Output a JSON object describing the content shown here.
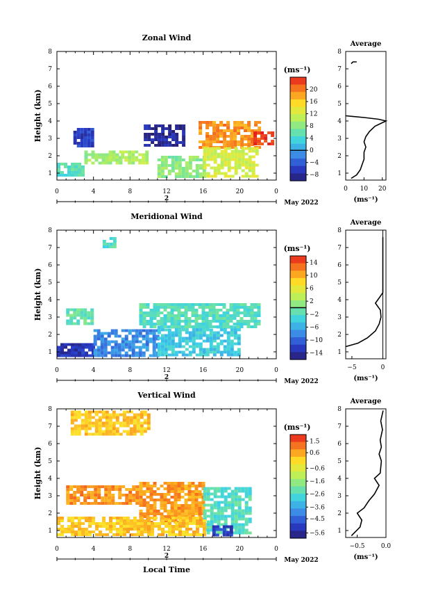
{
  "panels": [
    {
      "title": "Zonal Wind",
      "ylabel": "Height (km)",
      "ylim": [
        0.6,
        8
      ],
      "yticks": [
        "1",
        "2",
        "3",
        "4",
        "5",
        "6",
        "7",
        "8"
      ],
      "xlim": [
        0,
        24
      ],
      "xticks": [
        "0",
        "4",
        "8",
        "12",
        "16",
        "20",
        "0"
      ],
      "date_label": "2",
      "month_label": "May 2022",
      "unit_label": "(ms⁻¹)",
      "colorbar": {
        "min": -10,
        "max": 24,
        "ticks": [
          {
            "v": 20,
            "label": "20"
          },
          {
            "v": 16,
            "label": "16"
          },
          {
            "v": 12,
            "label": "12"
          },
          {
            "v": 8,
            "label": "8"
          },
          {
            "v": 4,
            "label": "4"
          },
          {
            "v": 0,
            "label": "0"
          },
          {
            "v": -4,
            "label": "−4"
          },
          {
            "v": -8,
            "label": "−8"
          }
        ],
        "zero_line": 0
      },
      "avg": {
        "title": "Average",
        "xlim": [
          0,
          22
        ],
        "xticks": [
          {
            "v": 0,
            "label": "0"
          },
          {
            "v": 10,
            "label": "10"
          },
          {
            "v": 20,
            "label": "20"
          }
        ],
        "xlabel": "(ms⁻¹)",
        "zero_line": false,
        "profile": [
          [
            3,
            0.7
          ],
          [
            6,
            0.9
          ],
          [
            8,
            1.2
          ],
          [
            9,
            1.5
          ],
          [
            10,
            1.8
          ],
          [
            10,
            2.2
          ],
          [
            11,
            2.5
          ],
          [
            10,
            2.8
          ],
          [
            11,
            3.1
          ],
          [
            13,
            3.4
          ],
          [
            16,
            3.7
          ],
          [
            20,
            3.9
          ],
          [
            22,
            4.0
          ],
          [
            18,
            4.1
          ],
          [
            10,
            4.2
          ],
          [
            0,
            4.3
          ]
        ],
        "profile2": [
          [
            3,
            7.3
          ],
          [
            4,
            7.4
          ],
          [
            6,
            7.4
          ]
        ]
      }
    },
    {
      "title": "Meridional Wind",
      "ylabel": "Height (km)",
      "ylim": [
        0.6,
        8
      ],
      "yticks": [
        "1",
        "2",
        "3",
        "4",
        "5",
        "6",
        "7",
        "8"
      ],
      "xlim": [
        0,
        24
      ],
      "xticks": [
        "0",
        "4",
        "8",
        "12",
        "16",
        "20",
        "0"
      ],
      "date_label": "2",
      "month_label": "May 2022",
      "unit_label": "(ms⁻¹)",
      "colorbar": {
        "min": -16,
        "max": 16,
        "ticks": [
          {
            "v": 14,
            "label": "14"
          },
          {
            "v": 10,
            "label": "10"
          },
          {
            "v": 6,
            "label": "6"
          },
          {
            "v": 2,
            "label": "2"
          },
          {
            "v": -2,
            "label": "−2"
          },
          {
            "v": -6,
            "label": "−6"
          },
          {
            "v": -10,
            "label": "−10"
          },
          {
            "v": -14,
            "label": "−14"
          }
        ],
        "zero_line": 0
      },
      "avg": {
        "title": "Average",
        "xlim": [
          -6,
          0.5
        ],
        "xticks": [
          {
            "v": -5,
            "label": "−5"
          },
          {
            "v": 0,
            "label": "0"
          }
        ],
        "xlabel": "(ms⁻¹)",
        "zero_line": true,
        "profile": [
          [
            -6,
            1.3
          ],
          [
            -4,
            1.5
          ],
          [
            -2.5,
            1.8
          ],
          [
            -1.2,
            2.2
          ],
          [
            -0.6,
            2.6
          ],
          [
            -0.3,
            3.0
          ],
          [
            -0.4,
            3.4
          ],
          [
            -1.2,
            3.8
          ],
          [
            -0.6,
            4.1
          ],
          [
            0,
            4.4
          ],
          [
            0,
            5.0
          ],
          [
            0,
            7.6
          ]
        ]
      }
    },
    {
      "title": "Vertical Wind",
      "ylabel": "Height (km)",
      "ylim": [
        0.6,
        8
      ],
      "yticks": [
        "1",
        "2",
        "3",
        "4",
        "5",
        "6",
        "7",
        "8"
      ],
      "xlim": [
        0,
        24
      ],
      "xticks": [
        "0",
        "4",
        "8",
        "12",
        "16",
        "20",
        "0"
      ],
      "date_label": "2",
      "month_label": "May 2022",
      "unit_label": "(ms⁻¹)",
      "xlabel": "Local Time",
      "colorbar": {
        "min": -6,
        "max": 2,
        "ticks": [
          {
            "v": 1.5,
            "label": "1.5"
          },
          {
            "v": 0.6,
            "label": "0.6"
          },
          {
            "v": -0.6,
            "label": "−0.6"
          },
          {
            "v": -1.6,
            "label": "−1.6"
          },
          {
            "v": -2.6,
            "label": "−2.6"
          },
          {
            "v": -3.6,
            "label": "−3.6"
          },
          {
            "v": -4.5,
            "label": "−4.5"
          },
          {
            "v": -5.6,
            "label": "−5.6"
          }
        ],
        "zero_line": null
      },
      "avg": {
        "title": "Average",
        "xlim": [
          -0.7,
          0
        ],
        "xticks": [
          {
            "v": -0.5,
            "label": "−0.5"
          },
          {
            "v": 0,
            "label": "0.0"
          }
        ],
        "xlabel": "(ms⁻¹)",
        "zero_line": false,
        "profile": [
          [
            -0.6,
            0.7
          ],
          [
            -0.45,
            1.2
          ],
          [
            -0.42,
            1.6
          ],
          [
            -0.5,
            2.0
          ],
          [
            -0.38,
            2.3
          ],
          [
            -0.3,
            2.7
          ],
          [
            -0.2,
            3.1
          ],
          [
            -0.12,
            3.6
          ],
          [
            -0.2,
            4.0
          ],
          [
            -0.1,
            4.3
          ],
          [
            -0.08,
            5.0
          ],
          [
            -0.12,
            5.4
          ],
          [
            -0.08,
            5.8
          ],
          [
            -0.1,
            6.2
          ],
          [
            -0.06,
            6.8
          ],
          [
            -0.09,
            7.3
          ],
          [
            -0.05,
            7.9
          ]
        ]
      }
    }
  ],
  "chart_data": [
    {
      "type": "heatmap",
      "title": "Zonal Wind",
      "x": "Local Time (hours, 2 May 2022)",
      "ylabel": "Height (km)",
      "xlim": [
        0,
        24
      ],
      "ylim": [
        0.6,
        8
      ],
      "colorbar_range": [
        -10,
        24
      ],
      "regions": [
        {
          "x": [
            0,
            3
          ],
          "y": [
            0.8,
            1.6
          ],
          "value": 5
        },
        {
          "x": [
            1.8,
            3.8
          ],
          "y": [
            2.6,
            3.6
          ],
          "value": -6
        },
        {
          "x": [
            3,
            7
          ],
          "y": [
            1.5,
            2.3
          ],
          "value": 9
        },
        {
          "x": [
            7,
            10
          ],
          "y": [
            1.5,
            2.3
          ],
          "value": 10
        },
        {
          "x": [
            9.5,
            14
          ],
          "y": [
            2.6,
            3.8
          ],
          "value": -8
        },
        {
          "x": [
            11,
            16
          ],
          "y": [
            0.8,
            2.0
          ],
          "value": 8
        },
        {
          "x": [
            15.5,
            22
          ],
          "y": [
            2.5,
            4.0
          ],
          "value": 19
        },
        {
          "x": [
            16,
            22
          ],
          "y": [
            0.8,
            2.5
          ],
          "value": 12
        },
        {
          "x": [
            21.5,
            23.5
          ],
          "y": [
            2.6,
            3.4
          ],
          "value": 23
        }
      ]
    },
    {
      "type": "heatmap",
      "title": "Meridional Wind",
      "x": "Local Time (hours, 2 May 2022)",
      "ylabel": "Height (km)",
      "xlim": [
        0,
        24
      ],
      "ylim": [
        0.6,
        8
      ],
      "colorbar_range": [
        -16,
        16
      ],
      "regions": [
        {
          "x": [
            0,
            4
          ],
          "y": [
            0.8,
            1.5
          ],
          "value": -13
        },
        {
          "x": [
            4,
            11
          ],
          "y": [
            0.8,
            2.3
          ],
          "value": -8
        },
        {
          "x": [
            11,
            20
          ],
          "y": [
            0.8,
            2.5
          ],
          "value": -4
        },
        {
          "x": [
            1,
            4
          ],
          "y": [
            2.6,
            3.5
          ],
          "value": -1
        },
        {
          "x": [
            9,
            22
          ],
          "y": [
            2.5,
            3.8
          ],
          "value": -2
        },
        {
          "x": [
            5,
            6.5
          ],
          "y": [
            7.0,
            7.6
          ],
          "value": -2
        }
      ]
    },
    {
      "type": "heatmap",
      "title": "Vertical Wind",
      "x": "Local Time (hours, 2 May 2022)",
      "xlabel": "Local Time",
      "ylabel": "Height (km)",
      "xlim": [
        0,
        24
      ],
      "ylim": [
        0.6,
        8
      ],
      "colorbar_range": [
        -6,
        2
      ],
      "regions": [
        {
          "x": [
            1,
            9
          ],
          "y": [
            2.6,
            3.6
          ],
          "value": 0.8
        },
        {
          "x": [
            9,
            16
          ],
          "y": [
            1.5,
            3.8
          ],
          "value": 0.7
        },
        {
          "x": [
            16,
            21
          ],
          "y": [
            0.8,
            3.5
          ],
          "value": -2.5
        },
        {
          "x": [
            17,
            19
          ],
          "y": [
            0.8,
            1.3
          ],
          "value": -5
        },
        {
          "x": [
            0,
            16
          ],
          "y": [
            0.8,
            1.8
          ],
          "value": 0.2
        },
        {
          "x": [
            1.5,
            10
          ],
          "y": [
            6.5,
            7.9
          ],
          "value": 0.2
        }
      ]
    }
  ]
}
